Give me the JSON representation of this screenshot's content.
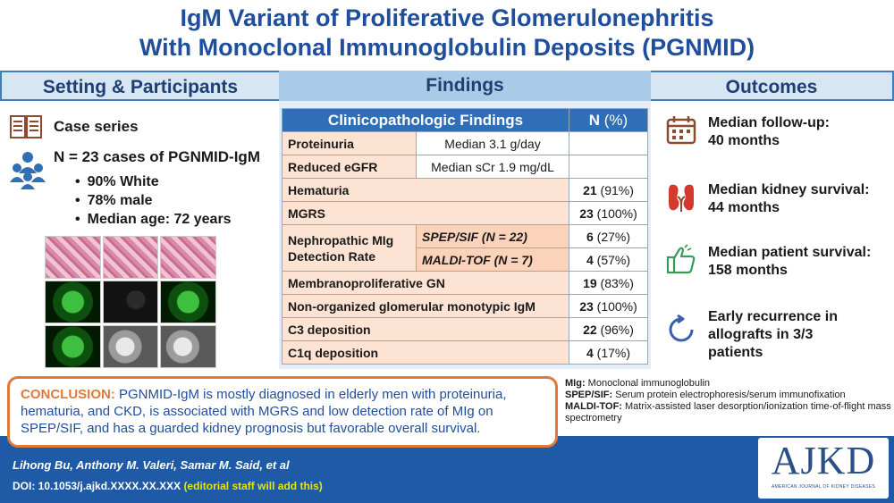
{
  "title": {
    "line1": "IgM Variant of Proliferative Glomerulonephritis",
    "line2": "With Monoclonal Immunoglobulin Deposits (PGNMID)"
  },
  "columns": {
    "setting": "Setting & Participants",
    "findings": "Findings",
    "outcomes": "Outcomes"
  },
  "setting": {
    "design": "Case series",
    "cases": "N = 23 cases of PGNMID-IgM",
    "bullets": [
      "90% White",
      "78% male",
      "Median age: 72 years"
    ]
  },
  "table": {
    "head_label": "Clinicopathologic Findings",
    "head_n": "N",
    "head_pct": " (%)",
    "proteinuria": {
      "label": "Proteinuria",
      "value": "Median 3.1 g/day"
    },
    "egfr": {
      "label": "Reduced eGFR",
      "value": "Median sCr 1.9 mg/dL"
    },
    "hematuria": {
      "label": "Hematuria",
      "n": "21",
      "pct": " (91%)"
    },
    "mgrs": {
      "label": "MGRS",
      "n": "23",
      "pct": " (100%)"
    },
    "detection": {
      "label": "Nephropathic MIg Detection Rate",
      "sub1": {
        "label": "SPEP/SIF (N = 22)",
        "n": "6",
        "pct": " (27%)"
      },
      "sub2": {
        "label": "MALDI-TOF (N = 7)",
        "n": "4",
        "pct": " (57%)"
      }
    },
    "mpgn": {
      "label": "Membranoproliferative GN",
      "n": "19",
      "pct": " (83%)"
    },
    "nonorg": {
      "label": "Non-organized glomerular monotypic IgM",
      "n": "23",
      "pct": " (100%)"
    },
    "c3": {
      "label": "C3 deposition",
      "n": "22",
      "pct": " (96%)"
    },
    "c1q": {
      "label": "C1q deposition",
      "n": "4",
      "pct": " (17%)"
    }
  },
  "outcomes": [
    {
      "icon": "calendar-icon",
      "line1": "Median follow-up:",
      "line2": "40 months"
    },
    {
      "icon": "kidney-icon",
      "line1": "Median kidney survival:",
      "line2": "44 months"
    },
    {
      "icon": "thumbs-up-icon",
      "line1": "Median patient survival:",
      "line2": "158 months"
    },
    {
      "icon": "recurrence-arrow-icon",
      "line1": "Early recurrence in",
      "line2": "allografts in 3/3",
      "line3": "patients"
    }
  ],
  "conclusion": {
    "label": "CONCLUSION:",
    "text": " PGNMID-IgM is mostly diagnosed in elderly men with proteinuria, hematuria, and CKD, is associated with MGRS and low detection rate of MIg on SPEP/SIF, and has a guarded kidney prognosis but favorable overall survival."
  },
  "abbreviations": [
    {
      "term": "MIg:",
      "def": " Monoclonal immunoglobulin"
    },
    {
      "term": "SPEP/SIF:",
      "def": " Serum protein electrophoresis/serum immunofixation"
    },
    {
      "term": "MALDI-TOF:",
      "def": " Matrix-assisted laser desorption/ionization time-of-flight mass spectrometry"
    }
  ],
  "footer": {
    "authors": "Lihong Bu, Anthony M. Valeri, Samar M. Said, et al",
    "doi": "DOI: 10.1053/j.ajkd.XXXX.XX.XXX",
    "editorial": "(editorial staff will add this)",
    "logo_text": "AJKD",
    "logo_sub": "AMERICAN JOURNAL OF KIDNEY DISEASES"
  },
  "colors": {
    "title_blue": "#1f4e9c",
    "table_header": "#2f6fb5",
    "accent_orange": "#e07a3a",
    "icon_brown": "#8c4a2f",
    "kidney_red": "#d33a2c",
    "thumb_green": "#3a9a5a",
    "arrow_blue": "#3b5fb0"
  }
}
